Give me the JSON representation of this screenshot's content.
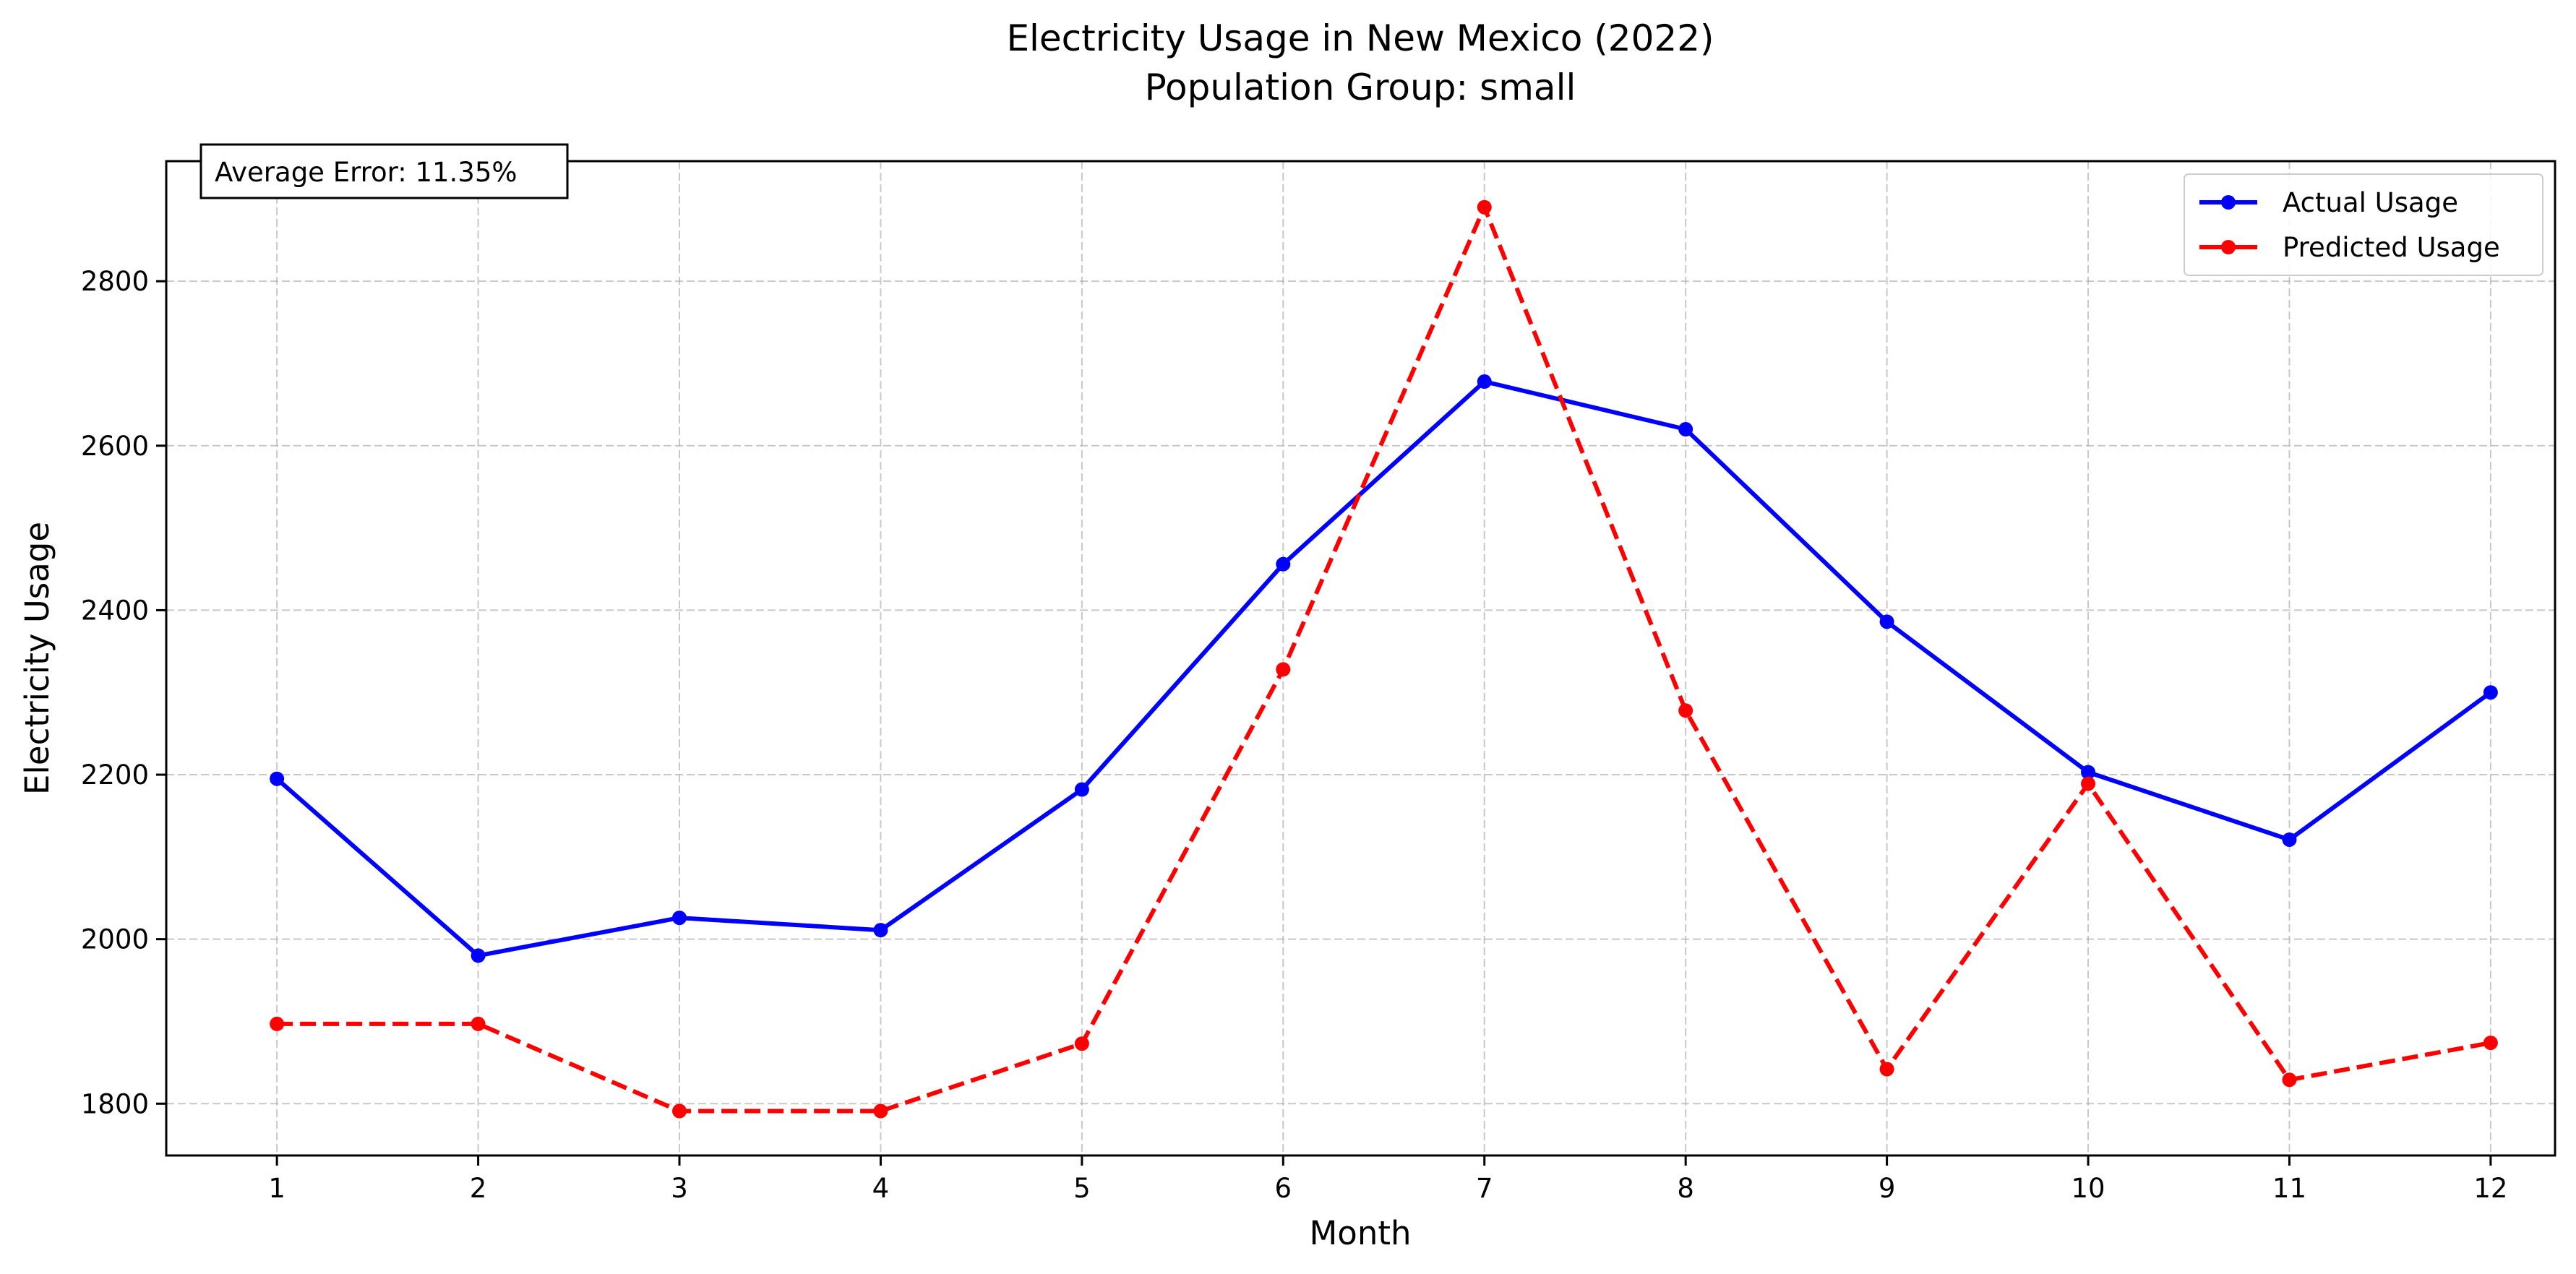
{
  "chart_data": {
    "type": "line",
    "title": "Electricity Usage in New Mexico (2022)",
    "subtitle": "Population Group: small",
    "xlabel": "Month",
    "ylabel": "Electricity Usage",
    "x": [
      1,
      2,
      3,
      4,
      5,
      6,
      7,
      8,
      9,
      10,
      11,
      12
    ],
    "x_tick_labels": [
      "1",
      "2",
      "3",
      "4",
      "5",
      "6",
      "7",
      "8",
      "9",
      "10",
      "11",
      "12"
    ],
    "y_ticks": [
      1800,
      2000,
      2200,
      2400,
      2600,
      2800
    ],
    "y_tick_labels": [
      "1800",
      "2000",
      "2200",
      "2400",
      "2600",
      "2800"
    ],
    "xlim": [
      0.45,
      12.32
    ],
    "ylim": [
      1737,
      2946
    ],
    "grid": true,
    "legend_position": "top-right",
    "annotation": "Average Error: 11.35%",
    "series": [
      {
        "name": "Actual Usage",
        "color": "#0000ff",
        "line_style": "solid",
        "marker": "circle",
        "values": [
          2195,
          1980,
          2026,
          2011,
          2182,
          2456,
          2678,
          2620,
          2386,
          2203,
          2121,
          2300
        ]
      },
      {
        "name": "Predicted Usage",
        "color": "#ff0000",
        "line_style": "dashed",
        "marker": "circle",
        "values": [
          1897,
          1897,
          1791,
          1791,
          1873,
          2328,
          2890,
          2278,
          1842,
          2189,
          1829,
          1874
        ]
      }
    ]
  }
}
